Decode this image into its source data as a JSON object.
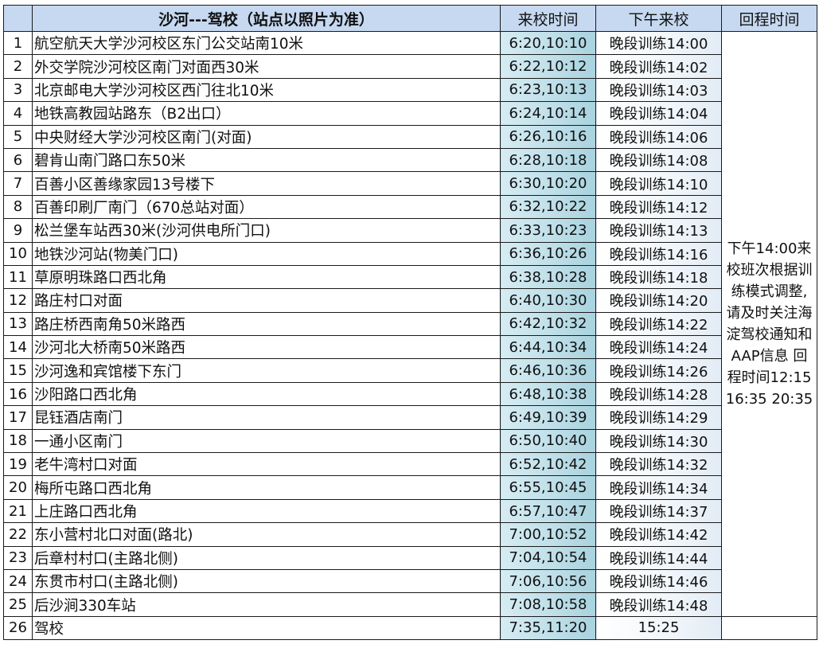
{
  "header": {
    "index": "",
    "route": "沙河---驾校（站点以照片为准）",
    "morning": "来校时间",
    "afternoon": "下午来校",
    "return": "回程时间"
  },
  "return_note": "下午14:00来校班次根据训练模式调整,请及时关注海淀驾校通知和AAP信息 回程时间12:15 16:35 20:35",
  "rows": [
    {
      "no": "1",
      "stop": "航空航天大学沙河校区东门公交站南10米",
      "morning": "6:20,10:10",
      "afternoon": "晚段训练14:00"
    },
    {
      "no": "2",
      "stop": "外交学院沙河校区南门对面西30米",
      "morning": "6:22,10:12",
      "afternoon": "晚段训练14:02"
    },
    {
      "no": "3",
      "stop": "北京邮电大学沙河校区西门往北10米",
      "morning": "6:23,10:13",
      "afternoon": "晚段训练14:03"
    },
    {
      "no": "4",
      "stop": "地铁高教园站路东（B2出口）",
      "morning": "6:24,10:14",
      "afternoon": "晚段训练14:04"
    },
    {
      "no": "5",
      "stop": "中央财经大学沙河校区南门(对面)",
      "morning": "6:26,10:16",
      "afternoon": "晚段训练14:06"
    },
    {
      "no": "6",
      "stop": "碧肯山南门路口东50米",
      "morning": "6:28,10:18",
      "afternoon": "晚段训练14:08"
    },
    {
      "no": "7",
      "stop": "百善小区善缘家园13号楼下",
      "morning": "6:30,10:20",
      "afternoon": "晚段训练14:10"
    },
    {
      "no": "8",
      "stop": "百善印刷厂南门（670总站对面）",
      "morning": "6:32,10:22",
      "afternoon": "晚段训练14:12"
    },
    {
      "no": "9",
      "stop": "松兰堡车站西30米(沙河供电所门口)",
      "morning": "6:33,10:23",
      "afternoon": "晚段训练14:13"
    },
    {
      "no": "10",
      "stop": "地铁沙河站(物美门口)",
      "morning": "6:36,10:26",
      "afternoon": "晚段训练14:16"
    },
    {
      "no": "11",
      "stop": "草原明珠路口西北角",
      "morning": "6:38,10:28",
      "afternoon": "晚段训练14:18"
    },
    {
      "no": "12",
      "stop": "路庄村口对面",
      "morning": "6:40,10:30",
      "afternoon": "晚段训练14:20"
    },
    {
      "no": "13",
      "stop": "路庄桥西南角50米路西",
      "morning": "6:42,10:32",
      "afternoon": "晚段训练14:22"
    },
    {
      "no": "14",
      "stop": "沙河北大桥南50米路西",
      "morning": "6:44,10:34",
      "afternoon": "晚段训练14:24"
    },
    {
      "no": "15",
      "stop": "沙河逸和宾馆楼下东门",
      "morning": "6:46,10:36",
      "afternoon": "晚段训练14:26"
    },
    {
      "no": "16",
      "stop": "沙阳路口西北角",
      "morning": "6:48,10:38",
      "afternoon": "晚段训练14:28"
    },
    {
      "no": "17",
      "stop": "昆钰酒店南门",
      "morning": "6:49,10:39",
      "afternoon": "晚段训练14:29"
    },
    {
      "no": "18",
      "stop": "一通小区南门",
      "morning": "6:50,10:40",
      "afternoon": "晚段训练14:30"
    },
    {
      "no": "19",
      "stop": "老牛湾村口对面",
      "morning": "6:52,10:42",
      "afternoon": "晚段训练14:32"
    },
    {
      "no": "20",
      "stop": "梅所屯路口西北角",
      "morning": "6:55,10:45",
      "afternoon": "晚段训练14:34"
    },
    {
      "no": "21",
      "stop": "上庄路口西北角",
      "morning": "6:57,10:47",
      "afternoon": "晚段训练14:37"
    },
    {
      "no": "22",
      "stop": "东小营村北口对面(路北)",
      "morning": "7:00,10:52",
      "afternoon": "晚段训练14:42"
    },
    {
      "no": "23",
      "stop": "后章村村口(主路北侧)",
      "morning": "7:04,10:54",
      "afternoon": "晚段训练14:44"
    },
    {
      "no": "24",
      "stop": "东贯市村口(主路北侧)",
      "morning": "7:06,10:56",
      "afternoon": "晚段训练14:46"
    },
    {
      "no": "25",
      "stop": "后沙涧330车站",
      "morning": "7:08,10:58",
      "afternoon": "晚段训练14:48"
    },
    {
      "no": "26",
      "stop": "驾校",
      "morning": "7:35,11:20",
      "afternoon": "15:25"
    }
  ]
}
